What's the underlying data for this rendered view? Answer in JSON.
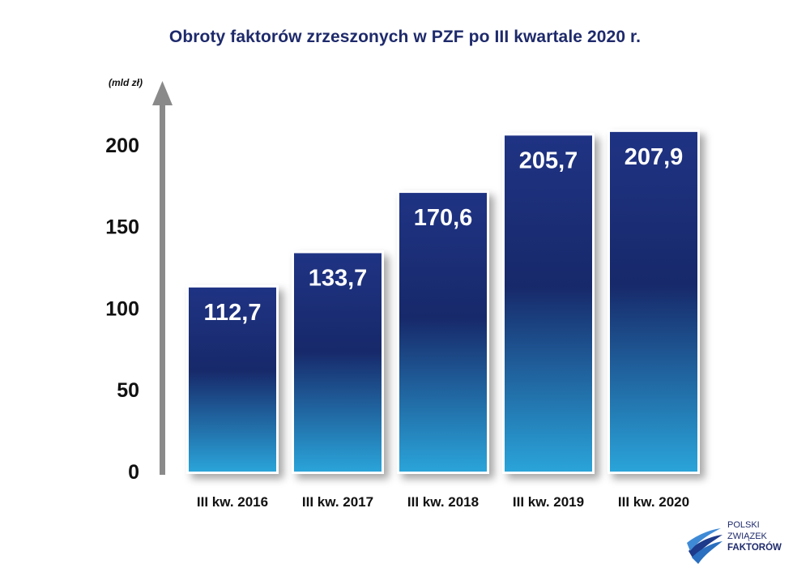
{
  "chart_data": {
    "type": "bar",
    "title": "Obroty faktorów zrzeszonych w PZF po III kwartale 2020 r.",
    "ylabel": "(mld zł)",
    "xlabel": "",
    "categories": [
      "III kw. 2016",
      "III kw. 2017",
      "III kw. 2018",
      "III kw. 2019",
      "III kw. 2020"
    ],
    "values": [
      112.7,
      133.7,
      170.6,
      205.7,
      207.9
    ],
    "value_labels": [
      "112,7",
      "133,7",
      "170,6",
      "205,7",
      "207,9"
    ],
    "yticks": [
      0,
      50,
      100,
      150,
      200
    ],
    "ytick_labels": [
      "0",
      "50",
      "100",
      "150",
      "200"
    ],
    "ylim": [
      0,
      220
    ],
    "grid": false,
    "legend": "none",
    "colors": {
      "bar_top": "#1e2f7e",
      "bar_mid": "#182a66",
      "bar_bottom": "#29a3d8",
      "axis": "#8a8a8a",
      "title": "#1e2a6b"
    }
  },
  "logo": {
    "line1": "POLSKI",
    "line2": "ZWIĄZEK",
    "line3": "FAKTORÓW"
  }
}
